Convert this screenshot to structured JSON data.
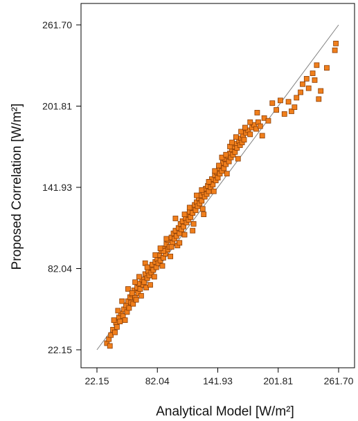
{
  "chart_data": {
    "type": "scatter",
    "xlabel": "Analytical Model [W/m²]",
    "ylabel": "Proposed Correlation [W/m²]",
    "xlim": [
      22.15,
      261.7
    ],
    "ylim": [
      22.15,
      261.7
    ],
    "x_ticks": [
      "22.15",
      "82.04",
      "141.93",
      "201.81",
      "261.70"
    ],
    "y_ticks": [
      "22.15",
      "82.04",
      "141.93",
      "201.81",
      "261.70"
    ],
    "reference_line": {
      "from": [
        22.15,
        22.15
      ],
      "to": [
        261.7,
        261.7
      ],
      "color": "#7f7f7f"
    },
    "marker": {
      "shape": "square",
      "fill": "#f07f1c",
      "stroke": "#8a3d05"
    },
    "grid": false,
    "points": [
      [
        32,
        27
      ],
      [
        34,
        30
      ],
      [
        35,
        25
      ],
      [
        36,
        33
      ],
      [
        38,
        37
      ],
      [
        40,
        35
      ],
      [
        41,
        42
      ],
      [
        42,
        39
      ],
      [
        44,
        46
      ],
      [
        45,
        43
      ],
      [
        46,
        49
      ],
      [
        48,
        47
      ],
      [
        49,
        52
      ],
      [
        50,
        44
      ],
      [
        51,
        55
      ],
      [
        52,
        50
      ],
      [
        53,
        58
      ],
      [
        54,
        53
      ],
      [
        55,
        61
      ],
      [
        56,
        57
      ],
      [
        57,
        63
      ],
      [
        58,
        56
      ],
      [
        59,
        66
      ],
      [
        60,
        61
      ],
      [
        61,
        59
      ],
      [
        62,
        68
      ],
      [
        63,
        64
      ],
      [
        64,
        71
      ],
      [
        65,
        67
      ],
      [
        66,
        62
      ],
      [
        67,
        74
      ],
      [
        68,
        70
      ],
      [
        69,
        72
      ],
      [
        70,
        78
      ],
      [
        71,
        68
      ],
      [
        72,
        75
      ],
      [
        73,
        80
      ],
      [
        74,
        77
      ],
      [
        75,
        83
      ],
      [
        76,
        79
      ],
      [
        77,
        85
      ],
      [
        78,
        81
      ],
      [
        79,
        76
      ],
      [
        80,
        87
      ],
      [
        81,
        83
      ],
      [
        82,
        89
      ],
      [
        83,
        86
      ],
      [
        84,
        92
      ],
      [
        85,
        88
      ],
      [
        86,
        95
      ],
      [
        87,
        84
      ],
      [
        88,
        90
      ],
      [
        89,
        97
      ],
      [
        90,
        93
      ],
      [
        91,
        100
      ],
      [
        92,
        96
      ],
      [
        93,
        103
      ],
      [
        94,
        98
      ],
      [
        95,
        91
      ],
      [
        96,
        105
      ],
      [
        97,
        101
      ],
      [
        98,
        108
      ],
      [
        99,
        104
      ],
      [
        100,
        110
      ],
      [
        101,
        106
      ],
      [
        102,
        99
      ],
      [
        103,
        112
      ],
      [
        104,
        108
      ],
      [
        105,
        115
      ],
      [
        106,
        111
      ],
      [
        107,
        117
      ],
      [
        108,
        113
      ],
      [
        109,
        107
      ],
      [
        110,
        119
      ],
      [
        111,
        116
      ],
      [
        112,
        122
      ],
      [
        113,
        118
      ],
      [
        114,
        124
      ],
      [
        115,
        120
      ],
      [
        116,
        127
      ],
      [
        117,
        123
      ],
      [
        118,
        115
      ],
      [
        119,
        129
      ],
      [
        120,
        125
      ],
      [
        121,
        131
      ],
      [
        122,
        128
      ],
      [
        123,
        134
      ],
      [
        124,
        130
      ],
      [
        125,
        136
      ],
      [
        126,
        132
      ],
      [
        127,
        126
      ],
      [
        128,
        138
      ],
      [
        129,
        135
      ],
      [
        130,
        141
      ],
      [
        131,
        137
      ],
      [
        132,
        143
      ],
      [
        133,
        139
      ],
      [
        134,
        146
      ],
      [
        135,
        142
      ],
      [
        136,
        148
      ],
      [
        137,
        144
      ],
      [
        138,
        139
      ],
      [
        139,
        151
      ],
      [
        140,
        147
      ],
      [
        141,
        153
      ],
      [
        142,
        149
      ],
      [
        143,
        156
      ],
      [
        144,
        152
      ],
      [
        145,
        158
      ],
      [
        146,
        154
      ],
      [
        147,
        160
      ],
      [
        148,
        156
      ],
      [
        149,
        163
      ],
      [
        150,
        159
      ],
      [
        151,
        152
      ],
      [
        152,
        165
      ],
      [
        153,
        161
      ],
      [
        154,
        167
      ],
      [
        155,
        164
      ],
      [
        156,
        170
      ],
      [
        157,
        166
      ],
      [
        158,
        172
      ],
      [
        159,
        168
      ],
      [
        160,
        174
      ],
      [
        161,
        171
      ],
      [
        162,
        163
      ],
      [
        163,
        176
      ],
      [
        164,
        173
      ],
      [
        165,
        178
      ],
      [
        166,
        175
      ],
      [
        167,
        180
      ],
      [
        168,
        177
      ],
      [
        170,
        182
      ],
      [
        172,
        184
      ],
      [
        174,
        181
      ],
      [
        176,
        186
      ],
      [
        178,
        188
      ],
      [
        180,
        185
      ],
      [
        182,
        190
      ],
      [
        184,
        187
      ],
      [
        186,
        180
      ],
      [
        188,
        193
      ],
      [
        192,
        191
      ],
      [
        196,
        204
      ],
      [
        200,
        199
      ],
      [
        204,
        206
      ],
      [
        208,
        196
      ],
      [
        212,
        205
      ],
      [
        215,
        198
      ],
      [
        218,
        201
      ],
      [
        220,
        208
      ],
      [
        224,
        212
      ],
      [
        226,
        218
      ],
      [
        230,
        222
      ],
      [
        232,
        215
      ],
      [
        236,
        226
      ],
      [
        238,
        221
      ],
      [
        240,
        232
      ],
      [
        242,
        207
      ],
      [
        244,
        213
      ],
      [
        250,
        230
      ],
      [
        258,
        243
      ],
      [
        259,
        248
      ],
      [
        75,
        70
      ],
      [
        88,
        95
      ],
      [
        96,
        98
      ],
      [
        104,
        101
      ],
      [
        117,
        110
      ],
      [
        128,
        122
      ],
      [
        70,
        86
      ],
      [
        85,
        97
      ],
      [
        100,
        119
      ],
      [
        121,
        136
      ],
      [
        133,
        146
      ],
      [
        146,
        164
      ],
      [
        154,
        172
      ],
      [
        160,
        179
      ],
      [
        165,
        183
      ],
      [
        60,
        72
      ],
      [
        53,
        67
      ],
      [
        47,
        58
      ],
      [
        43,
        51
      ],
      [
        39,
        44
      ],
      [
        57,
        64
      ],
      [
        64,
        76
      ],
      [
        72,
        83
      ],
      [
        80,
        92
      ],
      [
        91,
        104
      ],
      [
        109,
        122
      ],
      [
        114,
        127
      ],
      [
        126,
        140
      ],
      [
        139,
        154
      ],
      [
        143,
        158
      ],
      [
        150,
        166
      ],
      [
        156,
        175
      ],
      [
        169,
        186
      ],
      [
        174,
        190
      ],
      [
        181,
        197
      ]
    ]
  }
}
